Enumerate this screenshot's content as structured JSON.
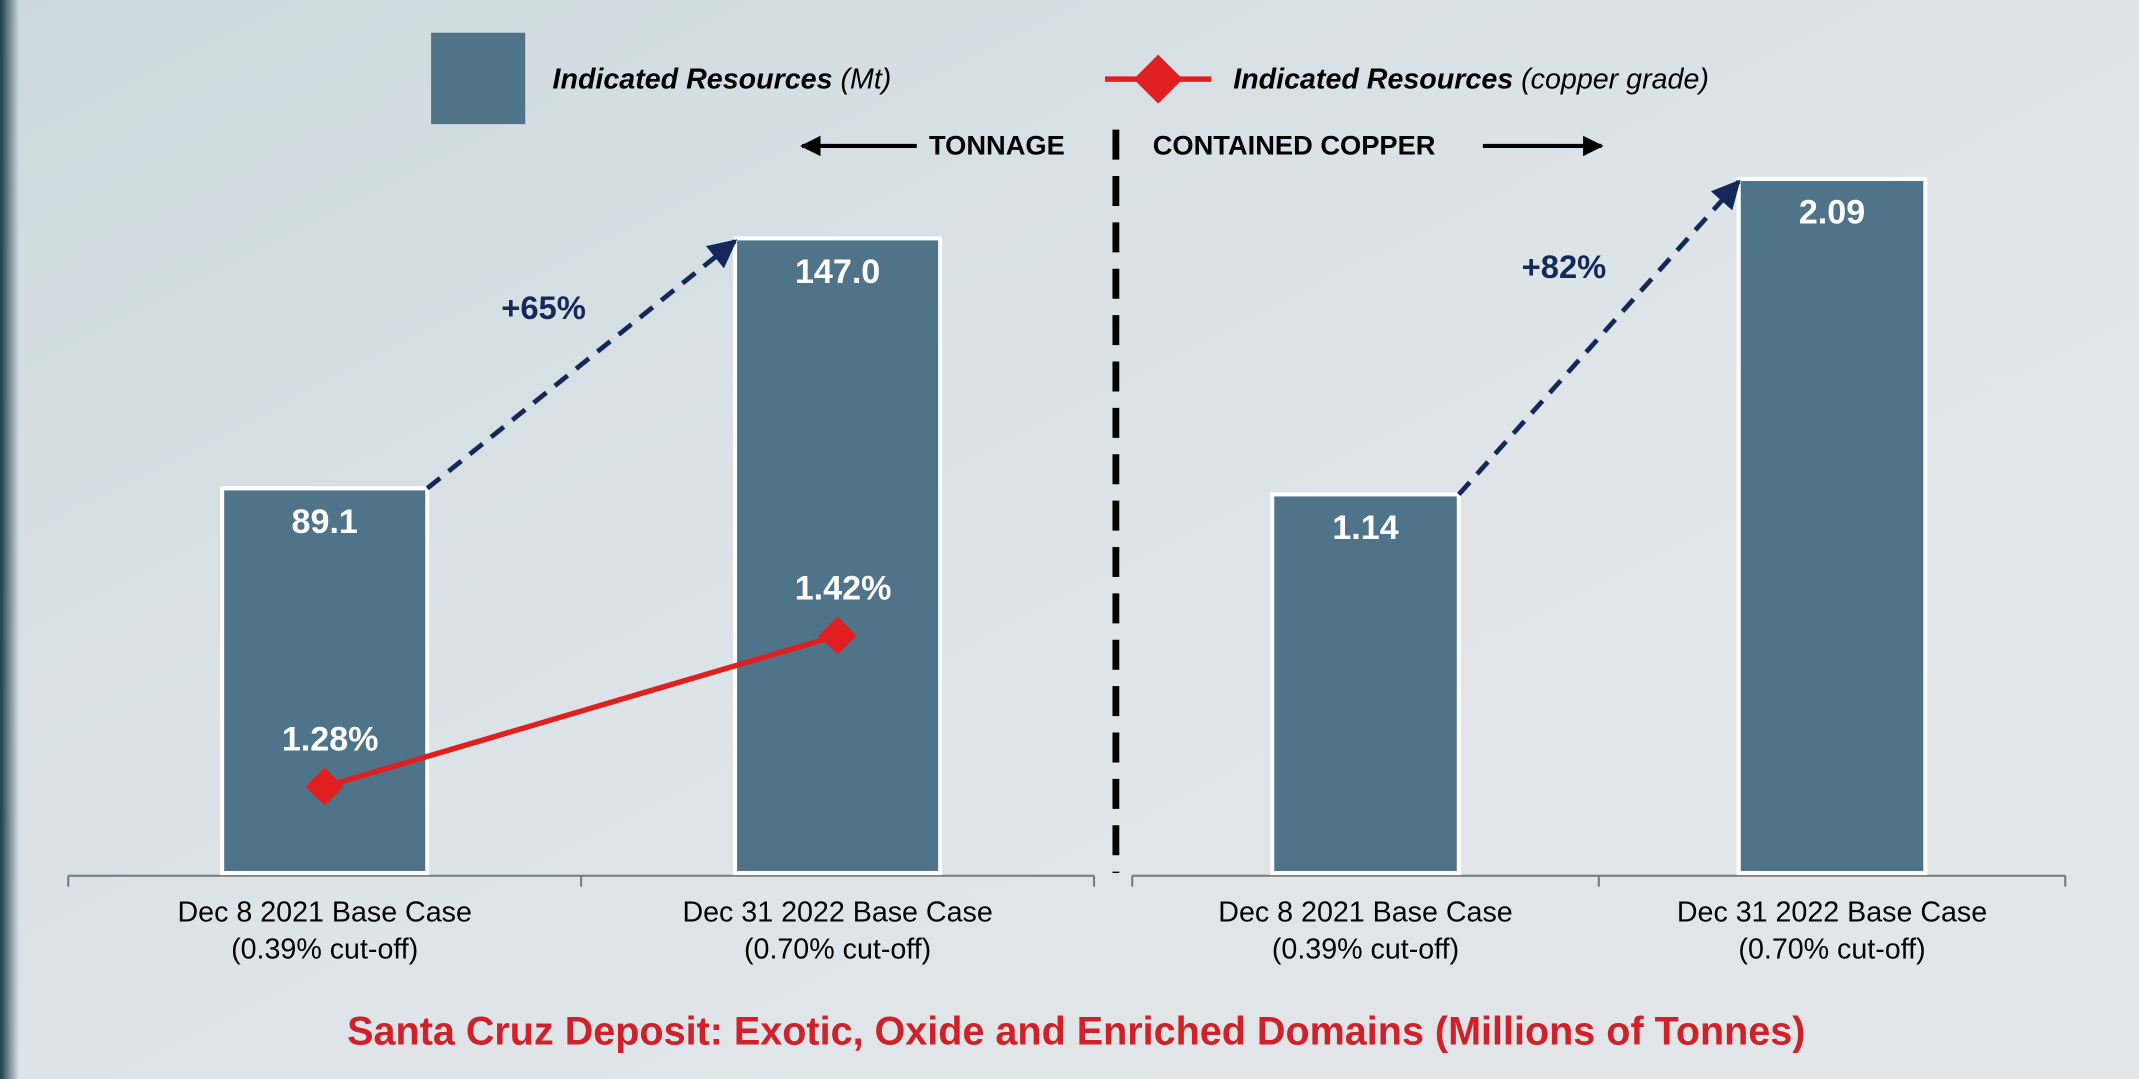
{
  "title": "Santa Cruz Deposit: Exotic, Oxide and Enriched Domains (Millions of Tonnes)",
  "chart_data": [
    {
      "type": "bar",
      "section_label": "TONNAGE",
      "categories": [
        [
          "Dec 8 2021 Base Case",
          "(0.39% cut-off)"
        ],
        [
          "Dec 31 2022 Base Case",
          "(0.70% cut-off)"
        ]
      ],
      "series": [
        {
          "name": "Indicated Resources",
          "unit_label": "(Mt)",
          "type": "bar",
          "color": "#4f7389",
          "values": [
            89.1,
            147.0
          ],
          "value_labels": [
            "89.1",
            "147.0"
          ]
        },
        {
          "name": "Indicated Resources",
          "unit_label": "(copper grade)",
          "type": "line",
          "axis": "y2",
          "color": "#e02020",
          "values": [
            1.28,
            1.42
          ],
          "value_labels": [
            "1.28%",
            "1.42%"
          ]
        }
      ],
      "ylim": [
        0,
        200
      ],
      "y2lim": [
        1.2,
        2.0
      ],
      "annotation": "+65%"
    },
    {
      "type": "bar",
      "section_label": "CONTAINED COPPER",
      "categories": [
        [
          "Dec 8 2021 Base Case",
          "(0.39% cut-off)"
        ],
        [
          "Dec 31 2022 Base Case",
          "(0.70% cut-off)"
        ]
      ],
      "series": [
        {
          "type": "bar",
          "color": "#4f7389",
          "values": [
            1.14,
            2.09
          ],
          "value_labels": [
            "1.14",
            "2.09"
          ]
        }
      ],
      "ylim": [
        0,
        2.6
      ],
      "annotation": "+82%"
    }
  ]
}
